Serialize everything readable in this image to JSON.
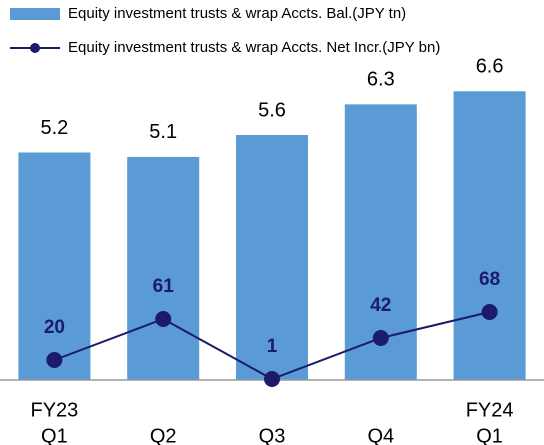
{
  "chart_data": {
    "type": "bar_line",
    "categories": [
      [
        "FY23",
        "Q1"
      ],
      [
        "Q2"
      ],
      [
        "Q3"
      ],
      [
        "Q4"
      ],
      [
        "FY24",
        "Q1"
      ]
    ],
    "series": [
      {
        "name": "Equity investment trusts & wrap Accts. Bal.(JPY tn)",
        "type": "bar",
        "color": "#5b9bd5",
        "values": [
          5.2,
          5.1,
          5.6,
          6.3,
          6.6
        ]
      },
      {
        "name": "Equity investment trusts & wrap Accts. Net Incr.(JPY bn)",
        "type": "line",
        "axis": "y2",
        "color": "#1b1a6b",
        "values": [
          20,
          61,
          1,
          42,
          68
        ]
      }
    ],
    "ylim": [
      0,
      8
    ],
    "y2lim": [
      0,
      350
    ],
    "legend": "top-left"
  }
}
